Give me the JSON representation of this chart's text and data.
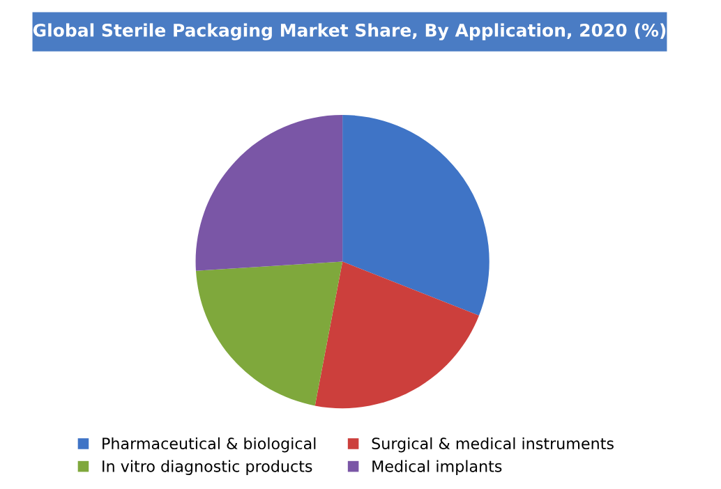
{
  "chart_data": {
    "type": "pie",
    "title": "Global Sterile Packaging Market Share, By Application, 2020 (%)",
    "categories": [
      "Pharmaceutical & biological",
      "Surgical & medical instruments",
      "In vitro diagnostic products",
      "Medical implants"
    ],
    "values": [
      31,
      22,
      21,
      26
    ],
    "colors": [
      "#3f74c6",
      "#cc3f3c",
      "#7fa83c",
      "#7a56a6"
    ],
    "legend": "bottom"
  }
}
